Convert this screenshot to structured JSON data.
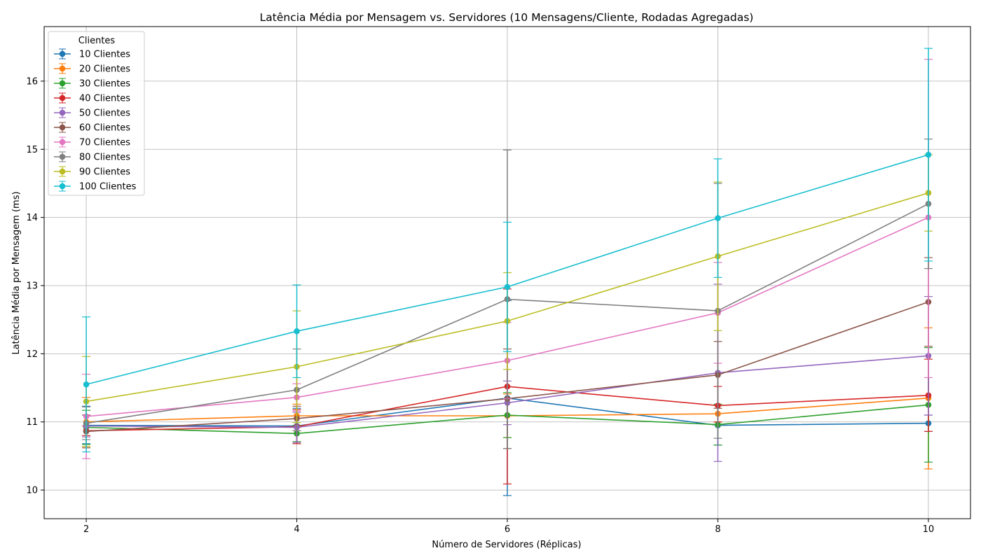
{
  "chart_data": {
    "type": "line",
    "title": "Latência Média por Mensagem vs. Servidores (10 Mensagens/Cliente, Rodadas Agregadas)",
    "xlabel": "Número de Servidores (Réplicas)",
    "ylabel": "Latência Média por Mensagem (ms)",
    "x": [
      2,
      4,
      6,
      8,
      10
    ],
    "x_ticks": [
      "2",
      "4",
      "6",
      "8",
      "10"
    ],
    "y_ticks": [
      "10",
      "11",
      "12",
      "13",
      "14",
      "15",
      "16"
    ],
    "xlim": [
      1.6,
      10.4
    ],
    "ylim": [
      9.58,
      16.8
    ],
    "grid": true,
    "error_bars": true,
    "legend": {
      "title": "Clientes",
      "placement": "top-left"
    },
    "series": [
      {
        "name": "10 Clientes",
        "color": "#1f77b4",
        "values": [
          10.95,
          10.94,
          11.35,
          10.95,
          10.98
        ],
        "err_low": [
          10.68,
          10.68,
          9.92,
          10.66,
          10.86
        ],
        "err_high": [
          11.23,
          11.2,
          12.78,
          11.24,
          11.1
        ]
      },
      {
        "name": "20 Clientes",
        "color": "#ff7f0e",
        "values": [
          11.0,
          11.09,
          11.09,
          11.12,
          11.35
        ],
        "err_low": [
          10.64,
          10.92,
          10.77,
          11.0,
          10.31
        ],
        "err_high": [
          11.36,
          11.26,
          11.41,
          11.24,
          12.38
        ]
      },
      {
        "name": "30 Clientes",
        "color": "#2ca02c",
        "values": [
          10.92,
          10.83,
          11.1,
          10.96,
          11.25
        ],
        "err_low": [
          10.67,
          10.71,
          10.77,
          10.66,
          10.41
        ],
        "err_high": [
          11.17,
          10.95,
          11.43,
          11.26,
          12.09
        ]
      },
      {
        "name": "40 Clientes",
        "color": "#d62728",
        "values": [
          10.87,
          10.93,
          11.52,
          11.24,
          11.39
        ],
        "err_low": [
          10.8,
          10.68,
          10.09,
          11.0,
          10.86
        ],
        "err_high": [
          10.94,
          11.18,
          12.95,
          11.52,
          11.92
        ]
      },
      {
        "name": "50 Clientes",
        "color": "#9467bd",
        "values": [
          10.94,
          10.92,
          11.28,
          11.72,
          11.97
        ],
        "err_low": [
          10.78,
          10.7,
          10.96,
          10.42,
          11.1
        ],
        "err_high": [
          11.1,
          11.14,
          11.6,
          13.02,
          12.84
        ]
      },
      {
        "name": "60 Clientes",
        "color": "#8c564b",
        "values": [
          10.86,
          11.05,
          11.34,
          11.69,
          12.76
        ],
        "err_low": [
          10.62,
          10.87,
          10.61,
          11.2,
          12.11
        ],
        "err_high": [
          11.1,
          11.23,
          12.07,
          12.18,
          13.41
        ]
      },
      {
        "name": "70 Clientes",
        "color": "#e377c2",
        "values": [
          11.08,
          11.36,
          11.9,
          12.6,
          14.0
        ],
        "err_low": [
          10.46,
          11.16,
          11.34,
          11.86,
          11.65
        ],
        "err_high": [
          11.7,
          11.56,
          12.46,
          13.34,
          16.32
        ]
      },
      {
        "name": "80 Clientes",
        "color": "#7f7f7f",
        "values": [
          10.98,
          11.47,
          12.8,
          12.63,
          14.2
        ],
        "err_low": [
          10.74,
          10.87,
          10.61,
          10.76,
          13.25
        ],
        "err_high": [
          11.22,
          12.07,
          14.99,
          14.5,
          15.15
        ]
      },
      {
        "name": "90 Clientes",
        "color": "#bcbd22",
        "values": [
          11.3,
          11.81,
          12.48,
          13.43,
          14.36
        ],
        "err_low": [
          10.64,
          10.99,
          11.77,
          12.34,
          13.8
        ],
        "err_high": [
          11.96,
          12.63,
          13.19,
          14.52,
          14.92
        ]
      },
      {
        "name": "100 Clientes",
        "color": "#17becf",
        "values": [
          11.55,
          12.33,
          12.98,
          13.99,
          14.92
        ],
        "err_low": [
          10.56,
          11.65,
          12.03,
          13.12,
          13.36
        ],
        "err_high": [
          12.54,
          13.01,
          13.93,
          14.86,
          16.48
        ]
      }
    ]
  }
}
